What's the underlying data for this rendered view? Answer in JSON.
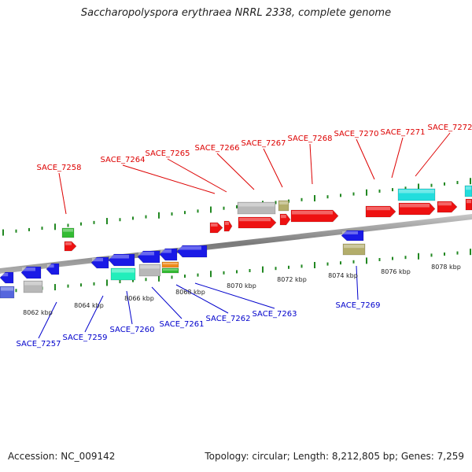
{
  "title": "Saccharopolyspora erythraea NRRL 2338, complete genome",
  "footer": {
    "accession": "Accession: NC_009142",
    "summary": "Topology: circular; Length: 8,212,805 bp; Genes: 7,259"
  },
  "colors": {
    "forward_label": "#dd0000",
    "reverse_label": "#0000cc",
    "tick": "#228822",
    "backbone": "#8a8a8a"
  },
  "scale_labels": [
    "8062 kbp",
    "8064 kbp",
    "8066 kbp",
    "8068 kbp",
    "8070 kbp",
    "8072 kbp",
    "8074 kbp",
    "8076 kbp",
    "8078 kbp"
  ],
  "forward_genes": [
    "SACE_7258",
    "SACE_7264",
    "SACE_7265",
    "SACE_7266",
    "SACE_7267",
    "SACE_7268",
    "SACE_7270",
    "SACE_7271",
    "SACE_7272"
  ],
  "reverse_genes": [
    "SACE_7257",
    "SACE_7259",
    "SACE_7260",
    "SACE_7261",
    "SACE_7262",
    "SACE_7263",
    "SACE_7269"
  ]
}
